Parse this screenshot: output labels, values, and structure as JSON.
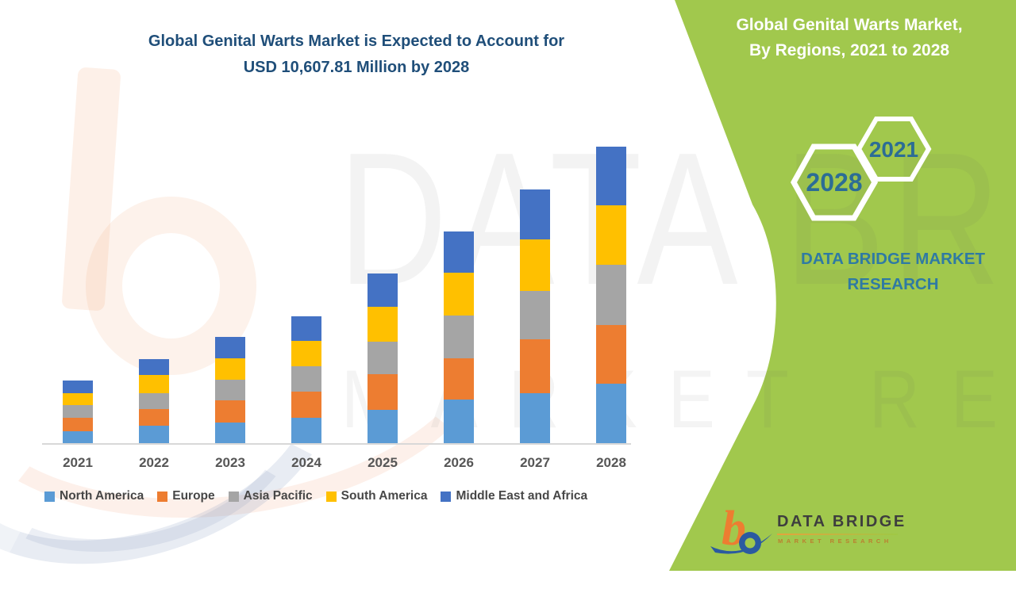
{
  "title": {
    "line1": "Global Genital Warts Market is Expected to Account for",
    "line2": "USD 10,607.81 Million by 2028"
  },
  "panel": {
    "heading_line1": "Global Genital Warts Market,",
    "heading_line2": "By Regions, 2021 to 2028",
    "hexagons": [
      {
        "label": "2021"
      },
      {
        "label": "2028"
      }
    ],
    "brand_line1": "DATA BRIDGE MARKET",
    "brand_line2": "RESEARCH",
    "colors": {
      "background": "#A1C84D",
      "text": "#2C6D95"
    }
  },
  "watermark": {
    "text_top": "DATA BRIDGE",
    "text_bottom": "MARKET RESEARCH"
  },
  "logo": {
    "name": "DATA BRIDGE",
    "tagline": "MARKET RESEARCH"
  },
  "colors": {
    "title_text": "#1F4E79",
    "axis_text": "#565656",
    "legend_text": "#474747",
    "axis_line": "#D8D8D8"
  },
  "chart_data": {
    "type": "bar",
    "stacked": true,
    "unit": "USD Million",
    "title": "Global Genital Warts Market is Expected to Account for USD 10,607.81 Million by 2028",
    "xlabel": "",
    "ylabel": "",
    "ylim": [
      0,
      11000
    ],
    "grid": false,
    "legend_position": "bottom",
    "total_2028": 10607.81,
    "categories": [
      "2021",
      "2022",
      "2023",
      "2024",
      "2025",
      "2026",
      "2027",
      "2028"
    ],
    "series": [
      {
        "name": "North America",
        "color": "#5B9BD5",
        "values": [
          452,
          650,
          770,
          933,
          1204,
          1582,
          1817,
          2148
        ]
      },
      {
        "name": "Europe",
        "color": "#ED7D31",
        "values": [
          480,
          593,
          775,
          933,
          1291,
          1458,
          1902,
          2091
        ]
      },
      {
        "name": "Asia Pacific",
        "color": "#A5A5A5",
        "values": [
          452,
          565,
          755,
          904,
          1159,
          1537,
          1724,
          2148
        ]
      },
      {
        "name": "South America",
        "color": "#FFC000",
        "values": [
          438,
          664,
          750,
          904,
          1224,
          1526,
          1837,
          2119
        ]
      },
      {
        "name": "Middle East and Africa",
        "color": "#4472C4",
        "values": [
          438,
          565,
          754,
          876,
          1198,
          1478,
          1792,
          2101.81
        ]
      }
    ],
    "totals": [
      2260,
      3037,
      3804,
      4550,
      6076,
      7581,
      9072,
      10607.81
    ]
  }
}
